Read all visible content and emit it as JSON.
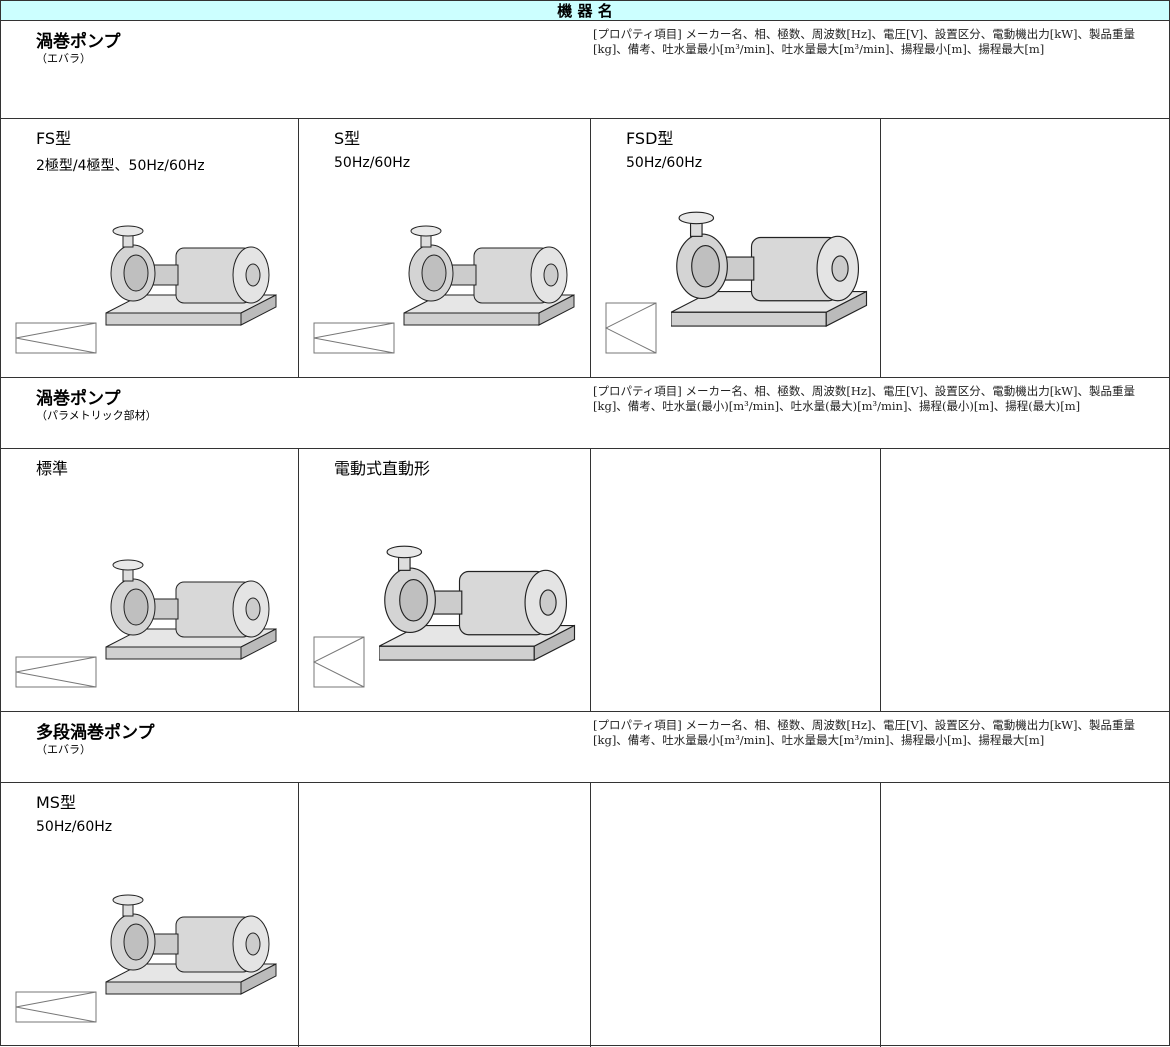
{
  "header": {
    "title": "機 器 名"
  },
  "sections": [
    {
      "title": "渦巻ポンプ",
      "subtitle": "（エバラ）",
      "properties": "[プロパティ項目] メーカー名、相、極数、周波数[Hz]、電圧[V]、設置区分、電動機出力[kW]、製品重量[kg]、備考、吐水量最小[m³/min]、吐水量最大[m³/min]、揚程最小[m]、揚程最大[m]",
      "items": [
        {
          "name": "FS型",
          "spec": "2極型/4極型、50Hz/60Hz"
        },
        {
          "name": "S型",
          "spec": "50Hz/60Hz"
        },
        {
          "name": "FSD型",
          "spec": "50Hz/60Hz"
        }
      ]
    },
    {
      "title": "渦巻ポンプ",
      "subtitle": "（パラメトリック部材）",
      "properties": "[プロパティ項目] メーカー名、相、極数、周波数[Hz]、電圧[V]、設置区分、電動機出力[kW]、製品重量[kg]、備考、吐水量(最小)[m³/min]、吐水量(最大)[m³/min]、揚程(最小)[m]、揚程(最大)[m]",
      "items": [
        {
          "name": "標準"
        },
        {
          "name": "電動式直動形"
        }
      ]
    },
    {
      "title": "多段渦巻ポンプ",
      "subtitle": "（エバラ）",
      "properties": "[プロパティ項目] メーカー名、相、極数、周波数[Hz]、電圧[V]、設置区分、電動機出力[kW]、製品重量[kg]、備考、吐水量最小[m³/min]、吐水量最大[m³/min]、揚程最小[m]、揚程最大[m]",
      "items": [
        {
          "name": "MS型",
          "spec": "50Hz/60Hz"
        }
      ]
    }
  ]
}
